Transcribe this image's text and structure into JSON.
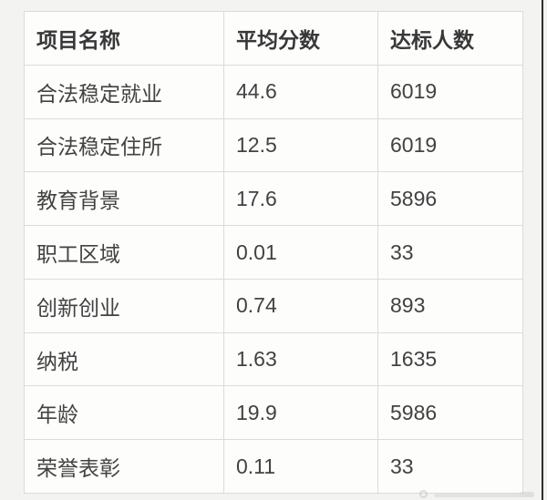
{
  "chart_data": {
    "type": "table",
    "columns": [
      "项目名称",
      "平均分数",
      "达标人数"
    ],
    "rows": [
      [
        "合法稳定就业",
        "44.6",
        "6019"
      ],
      [
        "合法稳定住所",
        "12.5",
        "6019"
      ],
      [
        "教育背景",
        "17.6",
        "5896"
      ],
      [
        "职工区域",
        "0.01",
        "33"
      ],
      [
        "创新创业",
        "0.74",
        "893"
      ],
      [
        "纳税",
        "1.63",
        "1635"
      ],
      [
        "年龄",
        "19.9",
        "5986"
      ],
      [
        "荣誉表彰",
        "0.11",
        "33"
      ]
    ]
  },
  "colors": {
    "page_bg": "#f3f3f1",
    "cell_bg": "#fdfdfc",
    "border": "#dbdbd9",
    "header_text": "#383838",
    "body_text": "#424242",
    "edge_line": "#2f2f2f"
  }
}
